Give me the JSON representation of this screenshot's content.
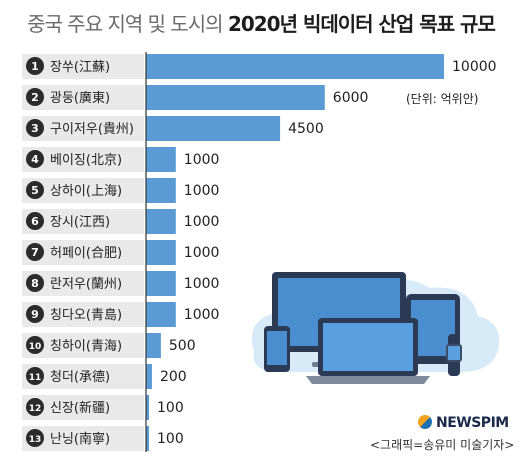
{
  "title": {
    "light": "중국 주요 지역 및 도시의 ",
    "bold": "2020년 빅데이터 산업 목표 규모"
  },
  "unit_label": "(단위: 억위안)",
  "brand": "NEWSPIM",
  "credit": "<그래픽=송유미 미술기자>",
  "colors": {
    "bar": "#5a9bd5",
    "label_bg": "#e9e9e9",
    "badge": "#2b2b2b",
    "axis": "#333333"
  },
  "chart_data": {
    "type": "bar",
    "orientation": "horizontal",
    "title": "중국 주요 지역 및 도시의 2020년 빅데이터 산업 목표 규모",
    "unit": "(단위: 억위안)",
    "xlim": [
      0,
      10000
    ],
    "categories": [
      {
        "rank": "1",
        "name": "장쑤(江蘇)",
        "value": 10000,
        "label": "10000"
      },
      {
        "rank": "2",
        "name": "광둥(廣東)",
        "value": 6000,
        "label": "6000"
      },
      {
        "rank": "3",
        "name": "구이저우(貴州)",
        "value": 4500,
        "label": "4500"
      },
      {
        "rank": "4",
        "name": "베이징(北京)",
        "value": 1000,
        "label": "1000"
      },
      {
        "rank": "5",
        "name": "상하이(上海)",
        "value": 1000,
        "label": "1000"
      },
      {
        "rank": "6",
        "name": "장시(江西)",
        "value": 1000,
        "label": "1000"
      },
      {
        "rank": "7",
        "name": "허페이(合肥)",
        "value": 1000,
        "label": "1000"
      },
      {
        "rank": "8",
        "name": "란저우(蘭州)",
        "value": 1000,
        "label": "1000"
      },
      {
        "rank": "9",
        "name": "칭다오(青島)",
        "value": 1000,
        "label": "1000"
      },
      {
        "rank": "10",
        "name": "칭하이(青海)",
        "value": 500,
        "label": "500"
      },
      {
        "rank": "11",
        "name": "청더(承德)",
        "value": 200,
        "label": "200"
      },
      {
        "rank": "12",
        "name": "신장(新疆)",
        "value": 100,
        "label": "100"
      },
      {
        "rank": "13",
        "name": "난닝(南寧)",
        "value": 100,
        "label": "100"
      }
    ]
  }
}
